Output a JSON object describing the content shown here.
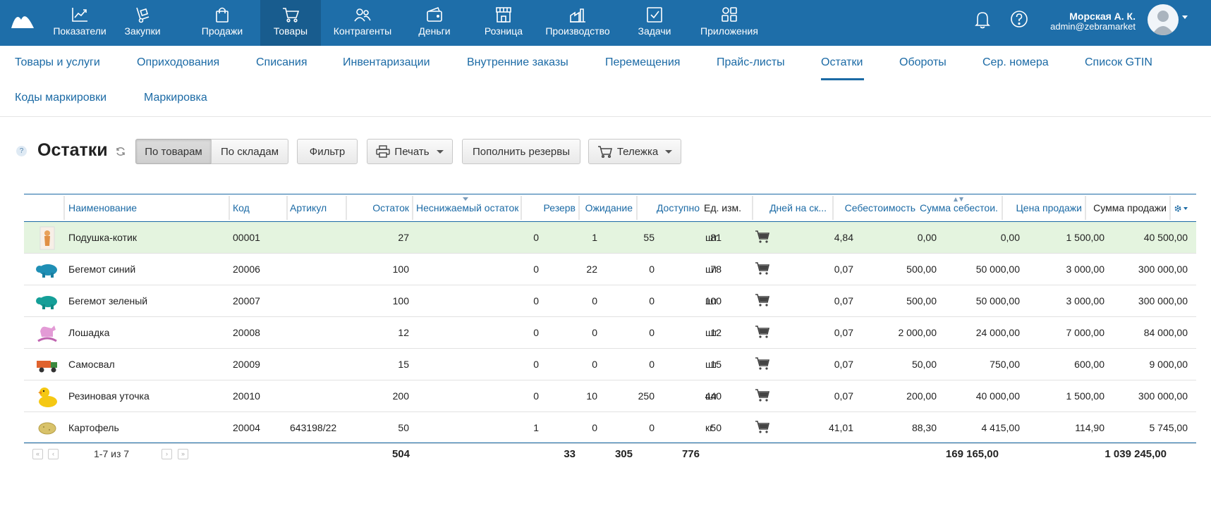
{
  "topnav": {
    "items": [
      {
        "label": "Показатели",
        "icon": "chart-icon"
      },
      {
        "label": "Закупки",
        "icon": "dolly-icon"
      },
      {
        "label": "Продажи",
        "icon": "bag-icon"
      },
      {
        "label": "Товары",
        "icon": "cart-icon"
      },
      {
        "label": "Контрагенты",
        "icon": "people-icon"
      },
      {
        "label": "Деньги",
        "icon": "wallet-icon"
      },
      {
        "label": "Розница",
        "icon": "store-icon"
      },
      {
        "label": "Производство",
        "icon": "factory-icon"
      },
      {
        "label": "Задачи",
        "icon": "task-icon"
      },
      {
        "label": "Приложения",
        "icon": "apps-icon"
      }
    ],
    "active": "Товары",
    "user_name": "Морская А. К.",
    "user_email": "admin@zebramarket"
  },
  "subnav": {
    "items": [
      "Товары и услуги",
      "Оприходования",
      "Списания",
      "Инвентаризации",
      "Внутренние заказы",
      "Перемещения",
      "Прайс-листы",
      "Остатки",
      "Обороты",
      "Сер. номера",
      "Список GTIN",
      "Коды маркировки",
      "Маркировка"
    ],
    "active": "Остатки"
  },
  "toolbar": {
    "help": "?",
    "title": "Остатки",
    "by_goods": "По товарам",
    "by_warehouses": "По складам",
    "filter": "Фильтр",
    "print": "Печать",
    "replenish": "Пополнить резервы",
    "cart": "Тележка"
  },
  "table": {
    "columns": [
      "Наименование",
      "Код",
      "Артикул",
      "Остаток",
      "Неснижаемый остаток",
      "Резерв",
      "Ожидание",
      "Доступно",
      "Ед. изм.",
      "Дней на ск...",
      "Себестоимость",
      "Сумма себестои...",
      "Цена продажи",
      "Сумма продажи"
    ],
    "rows": [
      {
        "name": "Подушка-котик",
        "code": "00001",
        "article": "",
        "stock": "27",
        "min_stock": "0",
        "reserve": "1",
        "waiting": "55",
        "available": "81",
        "unit": "шт",
        "days": "4,84",
        "cost": "0,00",
        "cost_sum": "0,00",
        "price": "1 500,00",
        "price_sum": "40 500,00",
        "thumb": "pillow-cat"
      },
      {
        "name": "Бегемот синий",
        "code": "20006",
        "article": "",
        "stock": "100",
        "min_stock": "0",
        "reserve": "22",
        "waiting": "0",
        "available": "78",
        "unit": "шт",
        "days": "0,07",
        "cost": "500,00",
        "cost_sum": "50 000,00",
        "price": "3 000,00",
        "price_sum": "300 000,00",
        "thumb": "hippo-blue"
      },
      {
        "name": "Бегемот зеленый",
        "code": "20007",
        "article": "",
        "stock": "100",
        "min_stock": "0",
        "reserve": "0",
        "waiting": "0",
        "available": "100",
        "unit": "шт",
        "days": "0,07",
        "cost": "500,00",
        "cost_sum": "50 000,00",
        "price": "3 000,00",
        "price_sum": "300 000,00",
        "thumb": "hippo-green"
      },
      {
        "name": "Лошадка",
        "code": "20008",
        "article": "",
        "stock": "12",
        "min_stock": "0",
        "reserve": "0",
        "waiting": "0",
        "available": "12",
        "unit": "шт",
        "days": "0,07",
        "cost": "2 000,00",
        "cost_sum": "24 000,00",
        "price": "7 000,00",
        "price_sum": "84 000,00",
        "thumb": "horse"
      },
      {
        "name": "Самосвал",
        "code": "20009",
        "article": "",
        "stock": "15",
        "min_stock": "0",
        "reserve": "0",
        "waiting": "0",
        "available": "15",
        "unit": "шт",
        "days": "0,07",
        "cost": "50,00",
        "cost_sum": "750,00",
        "price": "600,00",
        "price_sum": "9 000,00",
        "thumb": "truck"
      },
      {
        "name": "Резиновая уточка",
        "code": "20010",
        "article": "",
        "stock": "200",
        "min_stock": "0",
        "reserve": "10",
        "waiting": "250",
        "available": "440",
        "unit": "шт",
        "days": "0,07",
        "cost": "200,00",
        "cost_sum": "40 000,00",
        "price": "1 500,00",
        "price_sum": "300 000,00",
        "thumb": "duck"
      },
      {
        "name": "Картофель",
        "code": "20004",
        "article": "643198/22",
        "stock": "50",
        "min_stock": "1",
        "reserve": "0",
        "waiting": "0",
        "available": "50",
        "unit": "кг",
        "days": "41,01",
        "cost": "88,30",
        "cost_sum": "4 415,00",
        "price": "114,90",
        "price_sum": "5 745,00",
        "thumb": "potato"
      }
    ],
    "pager": "1-7 из 7",
    "totals": {
      "stock": "504",
      "reserve": "33",
      "waiting": "305",
      "available": "776",
      "cost_sum": "169 165,00",
      "price_sum": "1 039 245,00"
    }
  },
  "colors": {
    "topbar": "#1e6ea9",
    "link": "#1b6aa5",
    "highlight_row": "#e4f4df"
  }
}
